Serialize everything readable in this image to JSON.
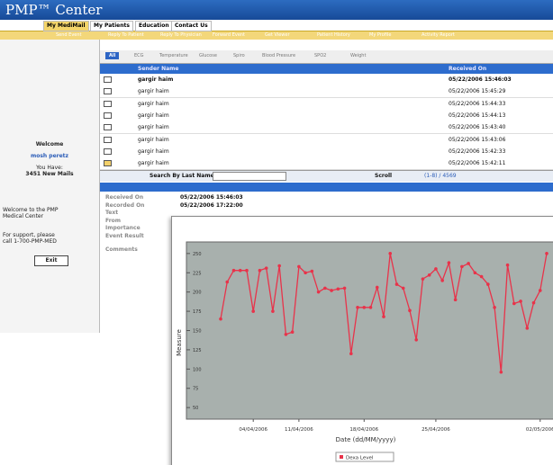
{
  "header": {
    "logo": "PMP™ Center"
  },
  "nav": [
    "My MediMail",
    "My Patients",
    "Education",
    "Contact Us"
  ],
  "toolbar": [
    "Send Event",
    "Reply To Patient",
    "Reply To Physician",
    "Forward Event",
    "Get Viewer",
    "Patient History",
    "My Profile",
    "Activity Report"
  ],
  "tabs": [
    "All",
    "ECG",
    "Temperature",
    "Glucose",
    "Spiro",
    "Blood Pressure",
    "SPO2",
    "Weight"
  ],
  "table": {
    "columns": [
      "Sender Name",
      "Received On"
    ],
    "rows": [
      [
        "gargir haim",
        "05/22/2006 15:46:03"
      ],
      [
        "gargir haim",
        "05/22/2006 15:45:29"
      ],
      [
        "gargir haim",
        "05/22/2006 15:44:33"
      ],
      [
        "gargir haim",
        "05/22/2006 15:44:13"
      ],
      [
        "gargir haim",
        "05/22/2006 15:43:40"
      ],
      [
        "gargir haim",
        "05/22/2006 15:43:06"
      ],
      [
        "gargir haim",
        "05/22/2006 15:42:33"
      ],
      [
        "gargir haim",
        "05/22/2006 15:42:11"
      ]
    ]
  },
  "sidebar": {
    "welcome": "Welcome",
    "user": "mosh peretz",
    "mails_label": "You Have:",
    "mails": "3451 New Mails",
    "intro": "Welcome to the PMP Medical Center",
    "support": "For support, please call 1-700-PMP-MED",
    "exit": "Exit"
  },
  "search": {
    "label": "Search By Last Name",
    "scroll": "Scroll",
    "range": "(1-8) / 4569"
  },
  "details": {
    "fields": [
      {
        "label": "Received On",
        "value": "05/22/2006 15:46:03"
      },
      {
        "label": "Recorded On",
        "value": "05/22/2006 17:22:00"
      },
      {
        "label": "Text"
      },
      {
        "label": "From"
      },
      {
        "label": "Importance"
      },
      {
        "label": "Event Result"
      },
      {
        "label": "Comments"
      }
    ]
  },
  "chart_data": {
    "type": "line",
    "x_label": "Date (dd/MM/yyyy)",
    "y_label": "Measure",
    "categories": [
      null,
      null,
      null,
      null,
      null,
      "04/04/2006",
      null,
      null,
      null,
      null,
      null,
      null,
      "11/04/2006",
      null,
      null,
      null,
      null,
      null,
      null,
      null,
      null,
      null,
      "18/04/2006",
      null,
      null,
      null,
      null,
      null,
      null,
      null,
      null,
      null,
      null,
      "25/04/2006",
      null,
      null,
      null,
      null,
      null,
      null,
      null,
      null,
      null,
      null,
      null,
      null,
      null,
      null,
      null,
      "02/05/2006",
      null
    ],
    "series": [
      {
        "name": "Dexa Level",
        "color": "#e8334a",
        "values": [
          165,
          213,
          228,
          228,
          228,
          175,
          228,
          231,
          175,
          234,
          145,
          148,
          233,
          225,
          227,
          200,
          205,
          202,
          204,
          205,
          120,
          180,
          180,
          180,
          206,
          168,
          250,
          210,
          205,
          176,
          138,
          217,
          222,
          230,
          215,
          238,
          190,
          233,
          237,
          225,
          220,
          210,
          180,
          96,
          235,
          185,
          188,
          153,
          186,
          202,
          250
        ]
      }
    ],
    "ylim": [
      35,
      265
    ],
    "yticks": [
      50,
      75,
      100,
      125,
      150,
      175,
      200,
      225,
      250
    ],
    "plot_bg": "#a8b0ad"
  }
}
